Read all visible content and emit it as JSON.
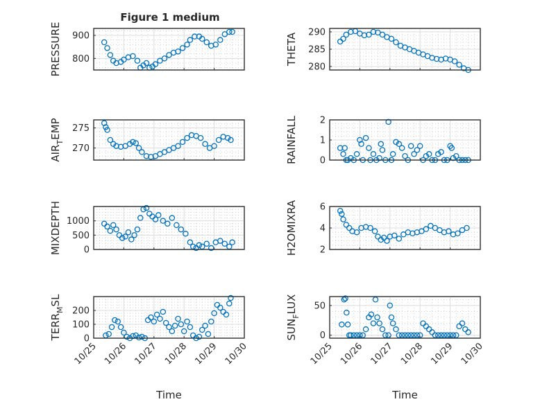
{
  "figure": {
    "title": "Figure 1 medium"
  },
  "chart_data": [
    {
      "type": "scatter",
      "id": "pressure",
      "ylabel": "PRESSURE",
      "ylabel_sub": "",
      "ylabel_suffix": "",
      "xlabel": "",
      "xlim": [
        0,
        5
      ],
      "ylim": [
        750,
        930
      ],
      "yticks": [
        800,
        900
      ],
      "ytick_labels": [
        "800",
        "900"
      ],
      "x": [
        0.35,
        0.45,
        0.55,
        0.65,
        0.75,
        0.9,
        1.0,
        1.15,
        1.3,
        1.45,
        1.55,
        1.65,
        1.75,
        1.85,
        1.95,
        2.05,
        2.2,
        2.35,
        2.5,
        2.65,
        2.8,
        2.95,
        3.1,
        3.2,
        3.35,
        3.5,
        3.6,
        3.75,
        3.9,
        4.05,
        4.2,
        4.35,
        4.5,
        4.6
      ],
      "values": [
        870,
        845,
        815,
        790,
        780,
        785,
        795,
        805,
        810,
        790,
        760,
        770,
        780,
        760,
        765,
        775,
        790,
        800,
        815,
        825,
        830,
        845,
        860,
        880,
        895,
        895,
        885,
        870,
        855,
        860,
        880,
        905,
        915,
        915
      ]
    },
    {
      "type": "scatter",
      "id": "theta",
      "ylabel": "THETA",
      "ylabel_sub": "",
      "ylabel_suffix": "",
      "xlabel": "",
      "xlim": [
        0,
        5
      ],
      "ylim": [
        279,
        291
      ],
      "yticks": [
        280,
        285,
        290
      ],
      "ytick_labels": [
        "280",
        "285",
        "290"
      ],
      "x": [
        0.35,
        0.45,
        0.55,
        0.7,
        0.85,
        1.0,
        1.15,
        1.3,
        1.45,
        1.6,
        1.75,
        1.9,
        2.05,
        2.2,
        2.35,
        2.5,
        2.65,
        2.8,
        2.95,
        3.1,
        3.25,
        3.4,
        3.55,
        3.7,
        3.85,
        4.0,
        4.15,
        4.3,
        4.45,
        4.6
      ],
      "values": [
        287.2,
        288.0,
        289.2,
        290.0,
        290.2,
        289.5,
        289.0,
        289.2,
        290.0,
        289.8,
        289.2,
        288.5,
        288.0,
        287.0,
        286.0,
        285.5,
        285.0,
        284.5,
        284.0,
        283.5,
        283.0,
        282.5,
        282.2,
        282.0,
        282.3,
        282.0,
        281.5,
        280.5,
        279.5,
        279.0
      ]
    },
    {
      "type": "scatter",
      "id": "air-temp",
      "ylabel": "AIR",
      "ylabel_sub": "T",
      "ylabel_suffix": "EMP",
      "xlabel": "",
      "xlim": [
        0,
        5
      ],
      "ylim": [
        267,
        277
      ],
      "yticks": [
        270,
        275
      ],
      "ytick_labels": [
        "270",
        "275"
      ],
      "x": [
        0.35,
        0.4,
        0.45,
        0.55,
        0.65,
        0.75,
        0.9,
        1.05,
        1.2,
        1.3,
        1.4,
        1.5,
        1.6,
        1.75,
        1.9,
        2.05,
        2.2,
        2.35,
        2.5,
        2.65,
        2.8,
        2.95,
        3.1,
        3.25,
        3.4,
        3.55,
        3.7,
        3.85,
        4.0,
        4.15,
        4.3,
        4.45,
        4.55
      ],
      "values": [
        276.2,
        275.2,
        274.5,
        272.0,
        271.0,
        270.5,
        270.3,
        270.5,
        271.0,
        271.5,
        271.2,
        270.0,
        269.0,
        268.0,
        267.8,
        268.0,
        268.5,
        269.0,
        269.5,
        270.0,
        270.5,
        271.5,
        272.5,
        273.2,
        273.0,
        272.5,
        271.0,
        270.0,
        270.5,
        272.0,
        272.8,
        272.5,
        272.0
      ]
    },
    {
      "type": "scatter",
      "id": "rainfall",
      "ylabel": "RAINFALL",
      "ylabel_sub": "",
      "ylabel_suffix": "",
      "xlabel": "",
      "xlim": [
        0,
        5
      ],
      "ylim": [
        0,
        2
      ],
      "yticks": [
        0,
        1,
        2
      ],
      "ytick_labels": [
        "0",
        "1",
        "2"
      ],
      "x": [
        0.35,
        0.45,
        0.5,
        0.55,
        0.6,
        0.7,
        0.8,
        0.9,
        1.0,
        1.05,
        1.1,
        1.2,
        1.3,
        1.35,
        1.45,
        1.55,
        1.65,
        1.7,
        1.75,
        1.85,
        1.95,
        2.05,
        2.1,
        2.2,
        2.3,
        2.4,
        2.5,
        2.6,
        2.7,
        2.8,
        2.9,
        3.0,
        3.1,
        3.2,
        3.3,
        3.4,
        3.5,
        3.6,
        3.7,
        3.8,
        3.9,
        4.0,
        4.05,
        4.1,
        4.2,
        4.3,
        4.4,
        4.5,
        4.6
      ],
      "values": [
        0.6,
        0.3,
        0.6,
        0.0,
        0.0,
        0.1,
        0.0,
        0.3,
        1.0,
        0.8,
        0.0,
        1.1,
        0.6,
        0.0,
        0.3,
        0.0,
        0.1,
        0.8,
        0.5,
        0.0,
        1.9,
        0.0,
        0.3,
        0.9,
        0.8,
        0.6,
        0.2,
        0.0,
        0.7,
        0.3,
        0.5,
        0.7,
        0.0,
        0.2,
        0.3,
        0.0,
        0.0,
        0.3,
        0.4,
        0.0,
        0.0,
        0.7,
        0.6,
        0.1,
        0.2,
        0.0,
        0.0,
        0.0,
        0.0
      ]
    },
    {
      "type": "scatter",
      "id": "mixdepth",
      "ylabel": "MIXDEPTH",
      "ylabel_sub": "",
      "ylabel_suffix": "",
      "xlabel": "",
      "xlim": [
        0,
        5
      ],
      "ylim": [
        0,
        1500
      ],
      "yticks": [
        0,
        500,
        1000
      ],
      "ytick_labels": [
        "0",
        "500",
        "1000"
      ],
      "x": [
        0.35,
        0.45,
        0.55,
        0.65,
        0.75,
        0.85,
        0.95,
        1.05,
        1.15,
        1.25,
        1.35,
        1.45,
        1.55,
        1.65,
        1.75,
        1.85,
        1.95,
        2.05,
        2.15,
        2.3,
        2.45,
        2.6,
        2.75,
        2.9,
        3.05,
        3.2,
        3.3,
        3.4,
        3.5,
        3.6,
        3.75,
        3.9,
        4.05,
        4.2,
        4.35,
        4.5,
        4.6
      ],
      "values": [
        900,
        800,
        650,
        850,
        700,
        500,
        400,
        450,
        600,
        350,
        500,
        700,
        1100,
        1400,
        1450,
        1250,
        1150,
        1050,
        1200,
        1000,
        900,
        1100,
        850,
        700,
        550,
        250,
        100,
        50,
        150,
        100,
        200,
        50,
        250,
        300,
        200,
        100,
        250
      ]
    },
    {
      "type": "scatter",
      "id": "h2omixra",
      "ylabel": "H2OMIXRA",
      "ylabel_sub": "",
      "ylabel_suffix": "",
      "xlabel": "",
      "xlim": [
        0,
        5
      ],
      "ylim": [
        2,
        6
      ],
      "yticks": [
        2,
        4,
        6
      ],
      "ytick_labels": [
        "2",
        "4",
        "6"
      ],
      "x": [
        0.35,
        0.4,
        0.45,
        0.55,
        0.65,
        0.75,
        0.9,
        1.05,
        1.2,
        1.35,
        1.5,
        1.6,
        1.7,
        1.8,
        1.9,
        2.0,
        2.15,
        2.3,
        2.45,
        2.6,
        2.75,
        2.9,
        3.05,
        3.2,
        3.35,
        3.5,
        3.65,
        3.8,
        3.95,
        4.1,
        4.25,
        4.4,
        4.55
      ],
      "values": [
        5.6,
        5.3,
        4.8,
        4.3,
        4.0,
        3.7,
        3.6,
        4.0,
        4.1,
        4.0,
        3.7,
        3.2,
        2.9,
        3.1,
        2.8,
        3.2,
        3.3,
        3.0,
        3.4,
        3.6,
        3.5,
        3.6,
        3.7,
        3.9,
        4.2,
        4.0,
        3.8,
        3.6,
        3.7,
        3.4,
        3.5,
        3.8,
        4.0
      ]
    },
    {
      "type": "scatter",
      "id": "terr-msl",
      "ylabel": "TERR",
      "ylabel_sub": "M",
      "ylabel_suffix": "SL",
      "xlabel": "Time",
      "xlim": [
        0,
        5
      ],
      "ylim": [
        0,
        300
      ],
      "yticks": [
        0,
        100,
        200
      ],
      "ytick_labels": [
        "0",
        "100",
        "200"
      ],
      "xticks": [
        0,
        1,
        2,
        3,
        4,
        5
      ],
      "xtick_labels": [
        "10/25",
        "10/26",
        "10/27",
        "10/28",
        "10/29",
        "10/30"
      ],
      "x": [
        0.4,
        0.5,
        0.6,
        0.7,
        0.8,
        0.9,
        1.0,
        1.1,
        1.2,
        1.3,
        1.4,
        1.5,
        1.6,
        1.7,
        1.8,
        1.9,
        2.0,
        2.1,
        2.2,
        2.3,
        2.4,
        2.5,
        2.6,
        2.7,
        2.8,
        2.9,
        3.0,
        3.1,
        3.2,
        3.3,
        3.4,
        3.5,
        3.6,
        3.7,
        3.8,
        3.9,
        4.0,
        4.1,
        4.2,
        4.3,
        4.4,
        4.5,
        4.55
      ],
      "values": [
        20,
        30,
        80,
        130,
        120,
        80,
        40,
        10,
        0,
        15,
        20,
        5,
        10,
        0,
        130,
        150,
        120,
        170,
        140,
        190,
        110,
        80,
        50,
        90,
        140,
        100,
        50,
        120,
        80,
        20,
        0,
        10,
        60,
        90,
        30,
        120,
        180,
        240,
        220,
        190,
        170,
        250,
        290
      ]
    },
    {
      "type": "scatter",
      "id": "sun-flux",
      "ylabel": "SUN",
      "ylabel_sub": "F",
      "ylabel_suffix": "LUX",
      "xlabel": "Time",
      "xlim": [
        0,
        5
      ],
      "ylim": [
        -5,
        65
      ],
      "yticks": [
        0,
        50
      ],
      "ytick_labels": [
        "0",
        "50"
      ],
      "xticks": [
        0,
        1,
        2,
        3,
        4,
        5
      ],
      "xtick_labels": [
        "10/25",
        "10/26",
        "10/27",
        "10/28",
        "10/29",
        "10/30"
      ],
      "x": [
        0.4,
        0.48,
        0.52,
        0.56,
        0.6,
        0.65,
        0.7,
        0.8,
        0.9,
        1.0,
        1.1,
        1.2,
        1.3,
        1.38,
        1.45,
        1.52,
        1.58,
        1.65,
        1.75,
        1.85,
        1.95,
        2.0,
        2.05,
        2.1,
        2.2,
        2.3,
        2.4,
        2.5,
        2.6,
        2.7,
        2.8,
        2.9,
        3.0,
        3.1,
        3.2,
        3.3,
        3.4,
        3.5,
        3.6,
        3.7,
        3.8,
        3.9,
        4.0,
        4.1,
        4.2,
        4.3,
        4.4,
        4.5,
        4.6
      ],
      "values": [
        18,
        60,
        62,
        38,
        18,
        0,
        0,
        0,
        0,
        0,
        0,
        10,
        30,
        35,
        20,
        60,
        30,
        20,
        10,
        0,
        0,
        50,
        30,
        20,
        10,
        0,
        0,
        0,
        0,
        0,
        0,
        0,
        0,
        20,
        15,
        10,
        5,
        0,
        0,
        0,
        0,
        0,
        0,
        0,
        0,
        15,
        20,
        10,
        5
      ]
    }
  ]
}
